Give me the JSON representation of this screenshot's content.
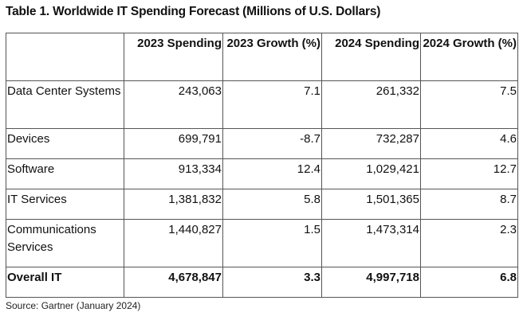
{
  "title": "Table 1. Worldwide IT Spending Forecast (Millions of U.S. Dollars)",
  "columns": [
    "",
    "2023 Spending",
    "2023 Growth (%)",
    "2024 Spending",
    "2024 Growth (%)"
  ],
  "rows": [
    [
      "Data Center Systems",
      "243,063",
      "7.1",
      "261,332",
      "7.5"
    ],
    [
      "Devices",
      "699,791",
      "-8.7",
      "732,287",
      "4.6"
    ],
    [
      "Software",
      "913,334",
      "12.4",
      "1,029,421",
      "12.7"
    ],
    [
      "IT Services",
      "1,381,832",
      "5.8",
      "1,501,365",
      "8.7"
    ],
    [
      "Communications Services",
      "1,440,827",
      "1.5",
      "1,473,314",
      "2.3"
    ]
  ],
  "total": [
    "Overall IT",
    "4,678,847",
    "3.3",
    "4,997,718",
    "6.8"
  ],
  "source": "Source: Gartner (January 2024)"
}
